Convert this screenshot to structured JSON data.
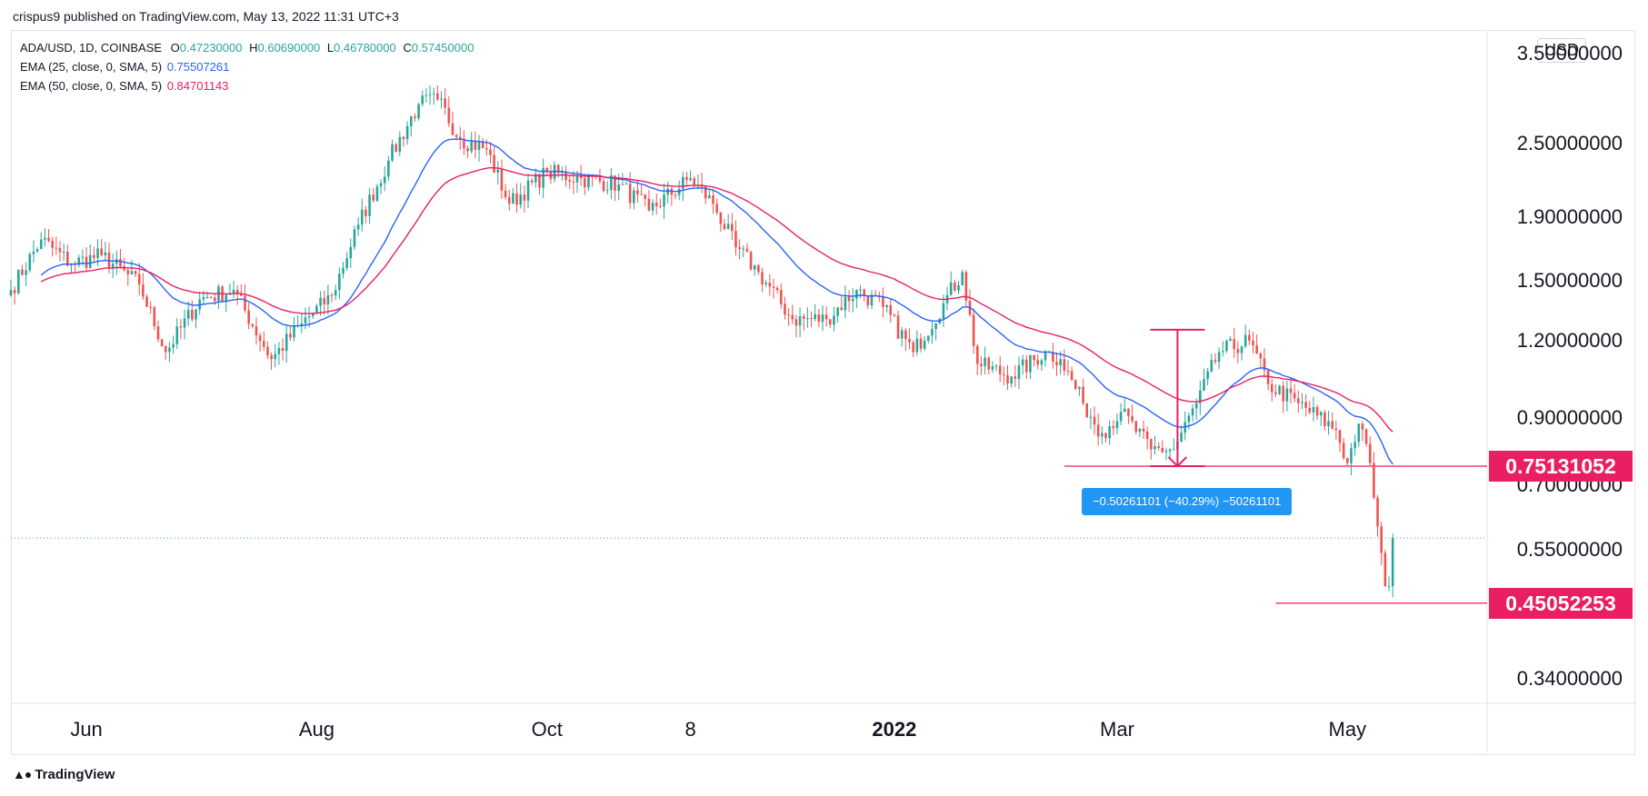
{
  "header": {
    "publish_line": "crispus9 published on TradingView.com, May 13, 2022 11:31 UTC+3"
  },
  "legend": {
    "symbol": "ADA/USD, 1D, COINBASE",
    "ohlc": [
      {
        "k": "O",
        "v": "0.47230000"
      },
      {
        "k": "H",
        "v": "0.60690000"
      },
      {
        "k": "L",
        "v": "0.46780000"
      },
      {
        "k": "C",
        "v": "0.57450000"
      }
    ],
    "ema25": {
      "label": "EMA (25, close, 0, SMA, 5)",
      "value": "0.75507261",
      "color": "#2962ff"
    },
    "ema50": {
      "label": "EMA (50, close, 0, SMA, 5)",
      "value": "0.84701143",
      "color": "#e91e63"
    }
  },
  "currency_button": "USD",
  "price_tags": [
    {
      "label": "0.75131052",
      "value": 0.75131052
    },
    {
      "label": "0.45052253",
      "value": 0.45052253
    }
  ],
  "measure_label": "−0.50261101 (−40.29%) −50261101",
  "footer": {
    "brand": "TradingView",
    "logo_icon": "tradingview-logo-icon"
  },
  "colors": {
    "up": "#26a69a",
    "down": "#ef5350",
    "ema25": "#2962ff",
    "ema50": "#e91e63",
    "tag": "#e91e63",
    "measure": "#2196f3"
  },
  "chart_data": {
    "type": "candlestick",
    "symbol": "ADA/USD",
    "interval": "1D",
    "exchange": "COINBASE",
    "scale": "log",
    "ylim": [
      0.31,
      3.8
    ],
    "y_ticks": [
      {
        "label": "3.50000000",
        "value": 3.5
      },
      {
        "label": "2.50000000",
        "value": 2.5
      },
      {
        "label": "1.90000000",
        "value": 1.9
      },
      {
        "label": "1.50000000",
        "value": 1.5
      },
      {
        "label": "1.20000000",
        "value": 1.2
      },
      {
        "label": "0.90000000",
        "value": 0.9
      },
      {
        "label": "0.70000000",
        "value": 0.7
      },
      {
        "label": "0.55000000",
        "value": 0.55
      },
      {
        "label": "0.45000000",
        "value": 0.45
      },
      {
        "label": "0.34000000",
        "value": 0.34
      }
    ],
    "x_ticks": [
      {
        "label": "Jun",
        "date": "2021-06-01",
        "bold": false
      },
      {
        "label": "Aug",
        "date": "2021-08-01",
        "bold": false
      },
      {
        "label": "Oct",
        "date": "2021-10-01",
        "bold": false
      },
      {
        "label": "8",
        "date": "2021-11-08",
        "bold": false
      },
      {
        "label": "2022",
        "date": "2022-01-01",
        "bold": true
      },
      {
        "label": "Mar",
        "date": "2022-03-01",
        "bold": false
      },
      {
        "label": "May",
        "date": "2022-05-01",
        "bold": false
      }
    ],
    "x_range": [
      "2021-05-12",
      "2022-06-07"
    ],
    "close_anchors": [
      [
        "2021-05-12",
        1.45
      ],
      [
        "2021-05-20",
        1.75
      ],
      [
        "2021-05-28",
        1.6
      ],
      [
        "2021-06-05",
        1.65
      ],
      [
        "2021-06-15",
        1.48
      ],
      [
        "2021-06-22",
        1.15
      ],
      [
        "2021-07-01",
        1.4
      ],
      [
        "2021-07-10",
        1.45
      ],
      [
        "2021-07-20",
        1.12
      ],
      [
        "2021-07-28",
        1.28
      ],
      [
        "2021-08-05",
        1.42
      ],
      [
        "2021-08-12",
        1.85
      ],
      [
        "2021-08-20",
        2.35
      ],
      [
        "2021-08-28",
        2.9
      ],
      [
        "2021-09-02",
        2.95
      ],
      [
        "2021-09-08",
        2.55
      ],
      [
        "2021-09-15",
        2.45
      ],
      [
        "2021-09-21",
        2.0
      ],
      [
        "2021-10-01",
        2.25
      ],
      [
        "2021-10-10",
        2.2
      ],
      [
        "2021-10-20",
        2.15
      ],
      [
        "2021-10-28",
        1.95
      ],
      [
        "2021-11-08",
        2.2
      ],
      [
        "2021-11-14",
        2.0
      ],
      [
        "2021-11-20",
        1.7
      ],
      [
        "2021-11-26",
        1.55
      ],
      [
        "2021-12-05",
        1.3
      ],
      [
        "2021-12-14",
        1.3
      ],
      [
        "2021-12-22",
        1.45
      ],
      [
        "2021-12-29",
        1.36
      ],
      [
        "2022-01-06",
        1.15
      ],
      [
        "2022-01-14",
        1.38
      ],
      [
        "2022-01-19",
        1.55
      ],
      [
        "2022-01-23",
        1.1
      ],
      [
        "2022-02-01",
        1.05
      ],
      [
        "2022-02-10",
        1.15
      ],
      [
        "2022-02-14",
        1.12
      ],
      [
        "2022-02-20",
        0.95
      ],
      [
        "2022-02-25",
        0.85
      ],
      [
        "2022-03-02",
        0.92
      ],
      [
        "2022-03-10",
        0.8
      ],
      [
        "2022-03-16",
        0.8
      ],
      [
        "2022-03-22",
        0.95
      ],
      [
        "2022-03-28",
        1.15
      ],
      [
        "2022-04-05",
        1.2
      ],
      [
        "2022-04-10",
        1.02
      ],
      [
        "2022-04-18",
        0.95
      ],
      [
        "2022-04-28",
        0.86
      ],
      [
        "2022-05-01",
        0.76
      ],
      [
        "2022-05-04",
        0.88
      ],
      [
        "2022-05-07",
        0.76
      ],
      [
        "2022-05-09",
        0.6
      ],
      [
        "2022-05-11",
        0.48
      ],
      [
        "2022-05-12",
        0.48
      ],
      [
        "2022-05-13",
        0.5745
      ]
    ],
    "levels": [
      {
        "label": "0.75131052",
        "value": 0.75131052,
        "from": "2022-02-15"
      },
      {
        "label": "0.45052253",
        "value": 0.45052253,
        "from": "2022-04-12"
      }
    ],
    "measure": {
      "date": "2022-03-17",
      "from_value": 1.25,
      "to_value": 0.75131052,
      "label": "−0.50261101 (−40.29%) −50261101"
    },
    "last_close": 0.5745,
    "series": [
      {
        "name": "EMA (25, close, 0, SMA, 5)",
        "period": 25,
        "color": "#2962ff"
      },
      {
        "name": "EMA (50, close, 0, SMA, 5)",
        "period": 50,
        "color": "#e91e63"
      }
    ]
  }
}
